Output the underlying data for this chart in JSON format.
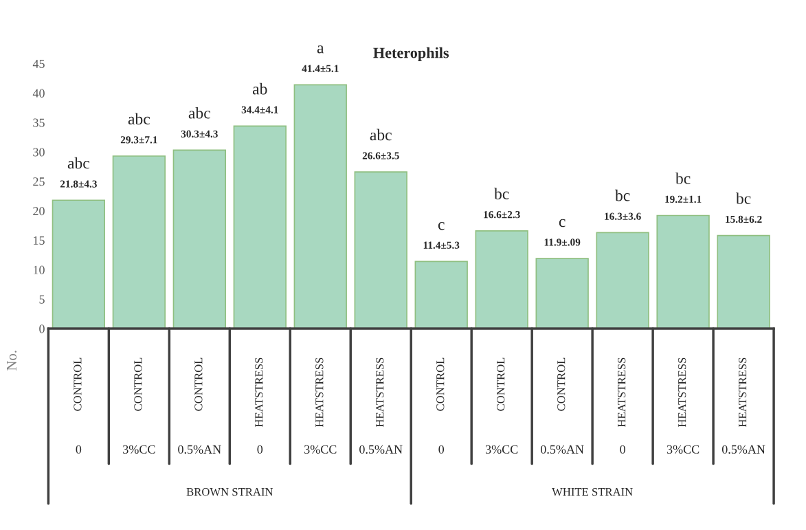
{
  "chart_data": {
    "type": "bar",
    "title": "Heterophils",
    "ylabel": "No.",
    "categories": [
      "CONTROL",
      "CONTROL",
      "CONTROL",
      "HEATSTRESS",
      "HEATSTRESS",
      "HEATSTRESS",
      "CONTROL",
      "CONTROL",
      "CONTROL",
      "HEATSTRESS",
      "HEATSTRESS",
      "HEATSTRESS"
    ],
    "values": [
      21.8,
      29.3,
      30.3,
      34.4,
      41.4,
      26.6,
      11.4,
      16.6,
      11.9,
      16.3,
      19.2,
      15.8
    ],
    "value_labels": [
      "21.8±4.3",
      "29.3±7.1",
      "30.3±4.3",
      "34.4±4.1",
      "41.4±5.1",
      "26.6±3.5",
      "11.4±5.3",
      "16.6±2.3",
      "11.9±.09",
      "16.3±3.6",
      "19.2±1.1",
      "15.8±6.2"
    ],
    "color": "#a8d8c0",
    "annotations": [
      "abc",
      "abc",
      "abc",
      "ab",
      "a",
      "abc",
      "c",
      "bc",
      "c",
      "bc",
      "bc",
      "bc",
      "0",
      "3%CC",
      "0.5%AN",
      "0",
      "3%CC",
      "0.5%AN",
      "0",
      "3%CC",
      "0.5%AN",
      "0",
      "3%CC",
      "0.5%AN",
      "BROWN STRAIN",
      "WHITE STRAIN"
    ],
    "ylim": [
      0,
      45
    ],
    "yticks": [
      0,
      5,
      10,
      15,
      20,
      25,
      30,
      35,
      40,
      45
    ],
    "grid": false,
    "legend": false
  }
}
